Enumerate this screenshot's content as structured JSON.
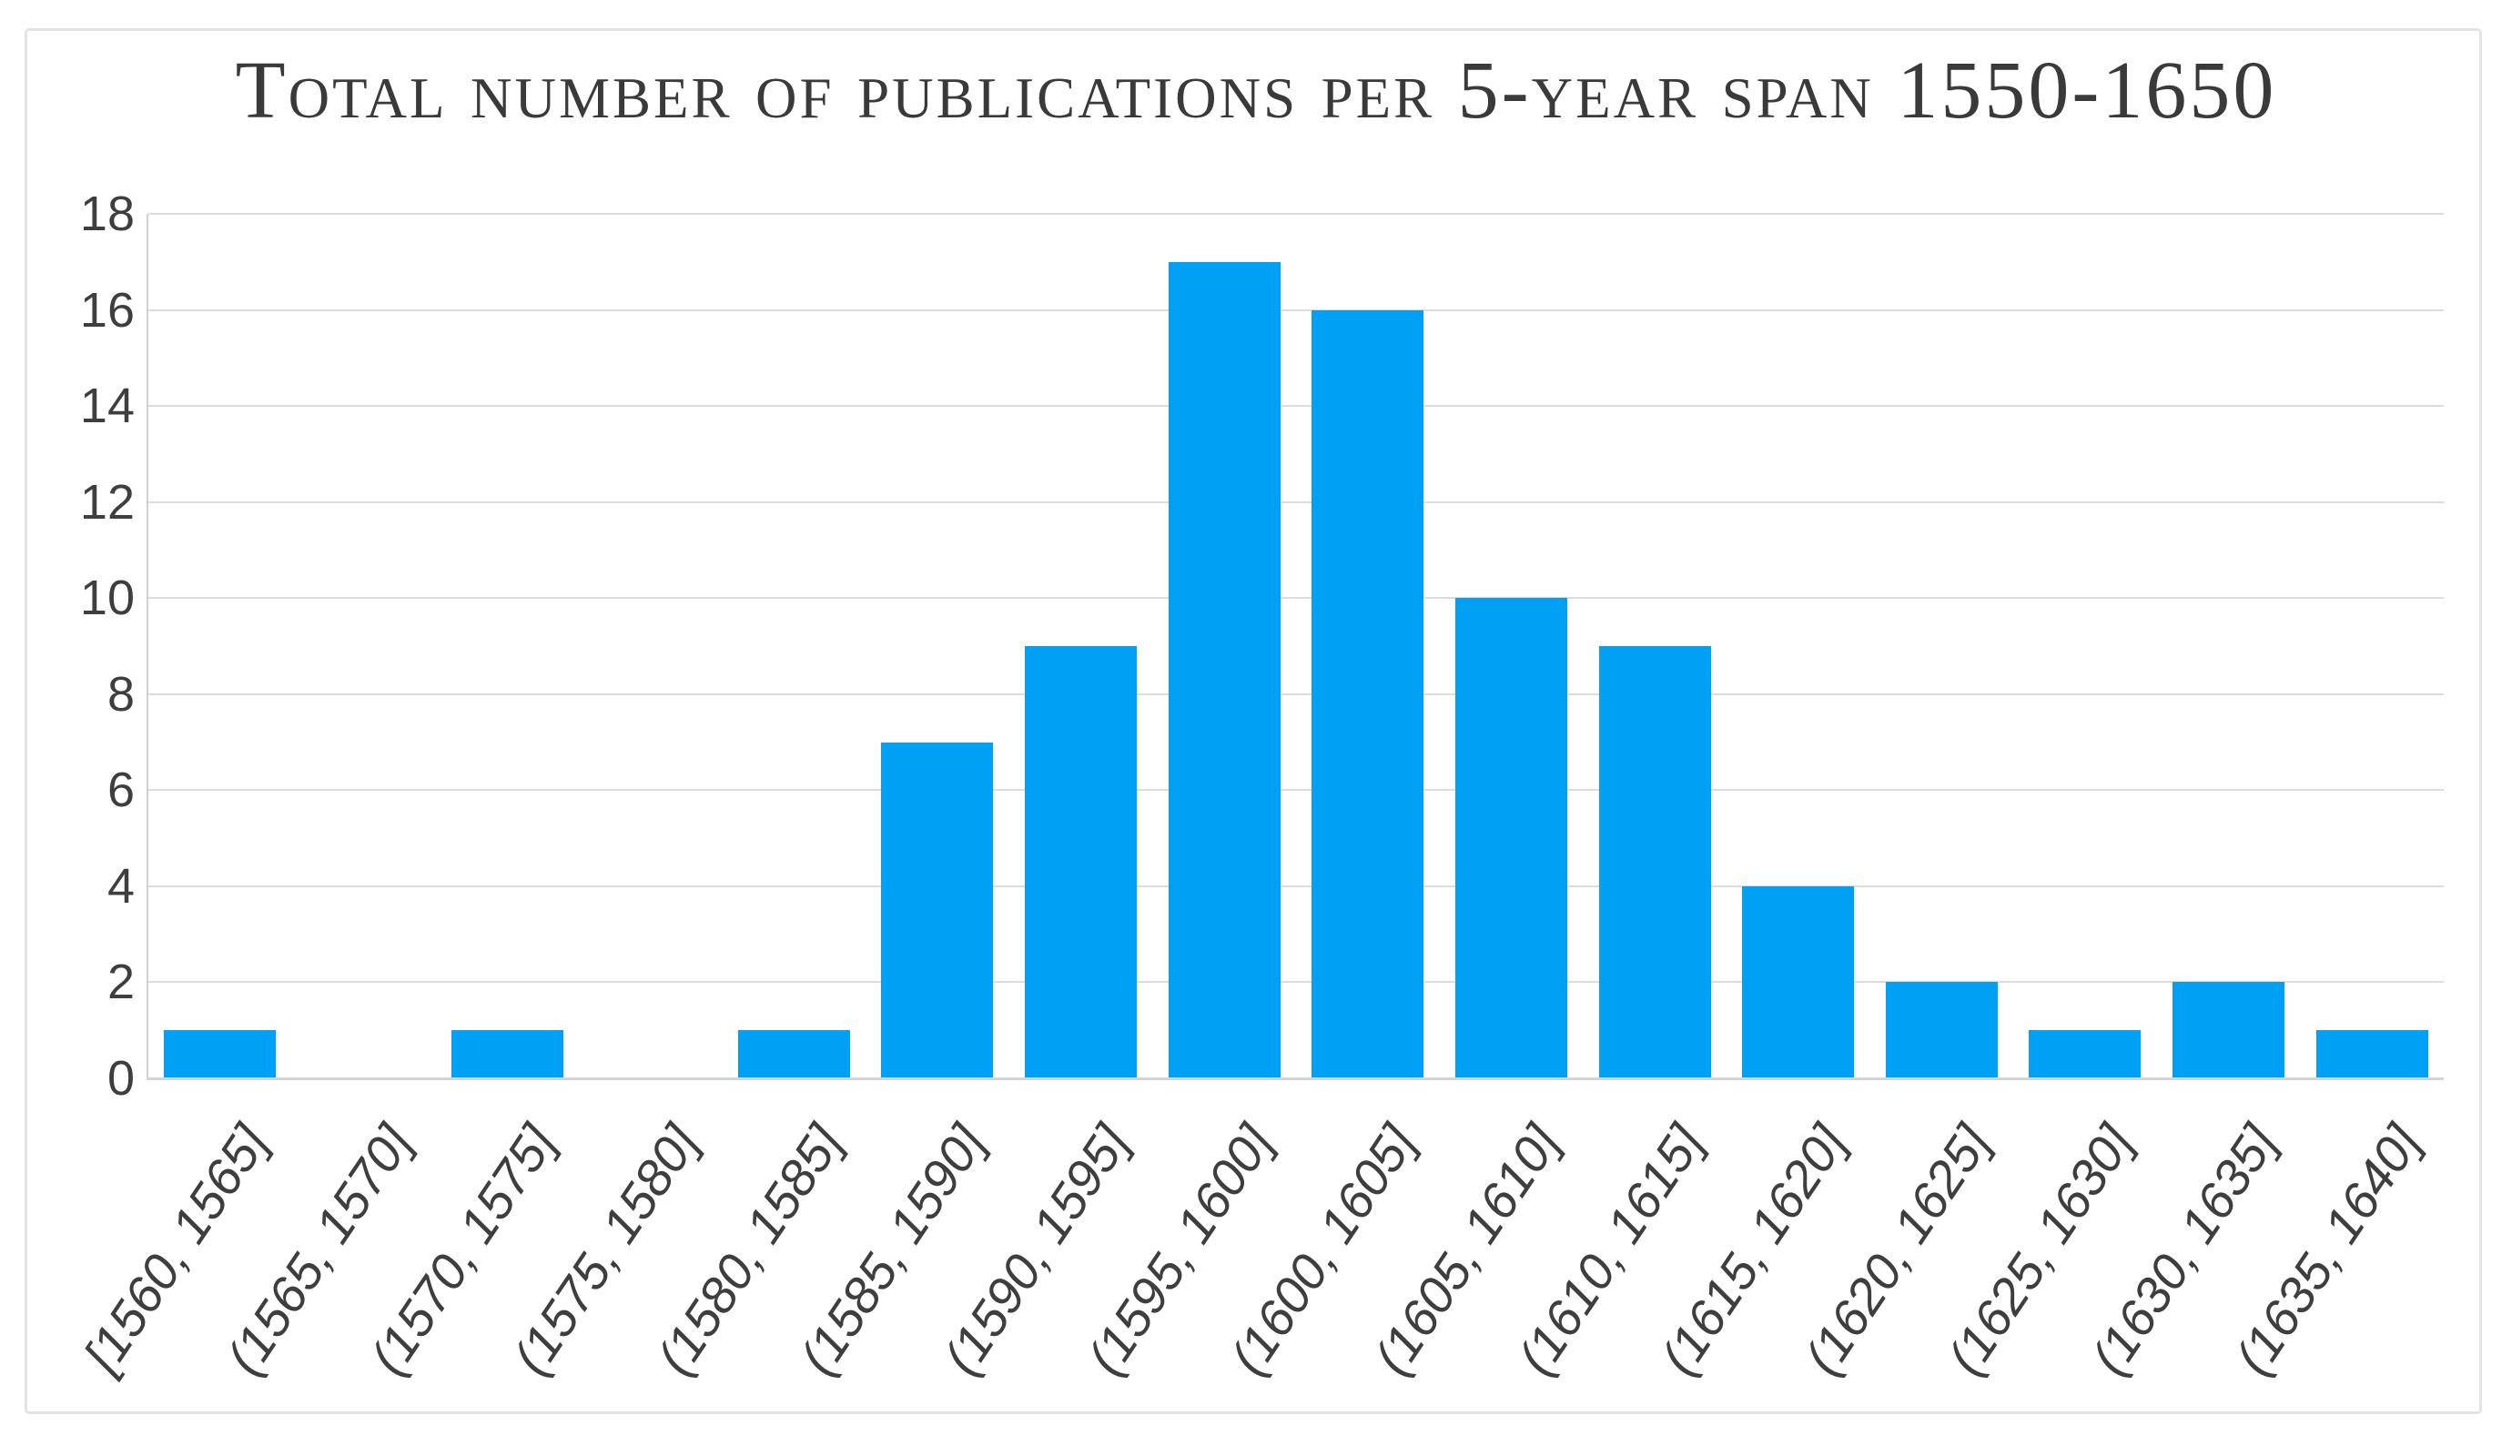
{
  "chart_data": {
    "type": "bar",
    "title": "Total number of publications per 5-year span 1550-1650",
    "categories": [
      "[1560, 1565]",
      "(1565, 1570]",
      "(1570, 1575]",
      "(1575, 1580]",
      "(1580, 1585]",
      "(1585, 1590]",
      "(1590, 1595]",
      "(1595, 1600]",
      "(1600, 1605]",
      "(1605, 1610]",
      "(1610, 1615]",
      "(1615, 1620]",
      "(1620, 1625]",
      "(1625, 1630]",
      "(1630, 1635]",
      "(1635, 1640]"
    ],
    "values": [
      1,
      0,
      1,
      0,
      1,
      7,
      9,
      17,
      16,
      10,
      9,
      4,
      2,
      1,
      2,
      1
    ],
    "xlabel": "",
    "ylabel": "",
    "ylim": [
      0,
      18
    ],
    "yticks": [
      0,
      2,
      4,
      6,
      8,
      10,
      12,
      14,
      16,
      18
    ],
    "grid": true,
    "legend": "none",
    "x_tick_rotation_deg": -56,
    "x_ticks_italic": true,
    "colors": {
      "bar": "#00A1F4",
      "gridline": "#DCDCDC",
      "axis_line": "#D2D2D2",
      "tick_label": "#3E3E3E",
      "title": "#3A3A3A",
      "frame_border": "#E4E4E4",
      "background": "#FFFFFF"
    }
  }
}
